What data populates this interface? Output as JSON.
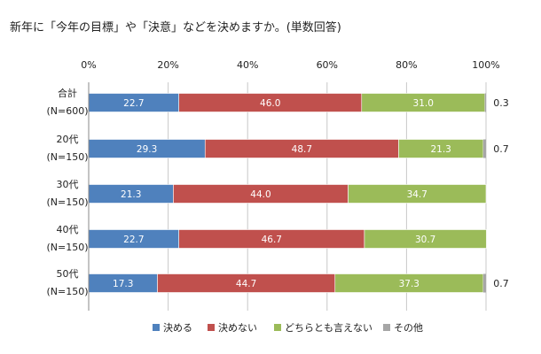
{
  "title": "新年に「今年の目標」や「決意」などを決めますか。(単数回答)",
  "colors": {
    "決める": "#4f81bd",
    "決めない": "#c0504d",
    "どちらとも言えない": "#9bbb59",
    "その他": "#a6a6a6"
  },
  "chart_data": {
    "type": "bar",
    "orientation": "horizontal",
    "stacked": true,
    "percent_stacked": true,
    "title": "新年に「今年の目標」や「決意」などを決めますか。(単数回答)",
    "xlim": [
      0,
      100
    ],
    "x_ticks": [
      "0%",
      "20%",
      "40%",
      "60%",
      "80%",
      "100%"
    ],
    "grid": true,
    "legend_position": "bottom",
    "categories": [
      {
        "line1": "合計",
        "line2": "(N=600)"
      },
      {
        "line1": "20代",
        "line2": "(N=150)"
      },
      {
        "line1": "30代",
        "line2": "(N=150)"
      },
      {
        "line1": "40代",
        "line2": "(N=150)"
      },
      {
        "line1": "50代",
        "line2": "(N=150)"
      }
    ],
    "series": [
      {
        "name": "決める",
        "values": [
          22.7,
          29.3,
          21.3,
          22.7,
          17.3
        ]
      },
      {
        "name": "決めない",
        "values": [
          46.0,
          48.7,
          44.0,
          46.7,
          44.7
        ]
      },
      {
        "name": "どちらとも言えない",
        "values": [
          31.0,
          21.3,
          34.7,
          30.7,
          37.3
        ]
      },
      {
        "name": "その他",
        "values": [
          0.3,
          0.7,
          null,
          null,
          0.7
        ]
      }
    ],
    "value_labels": [
      [
        "22.7",
        "46.0",
        "31.0",
        "0.3"
      ],
      [
        "29.3",
        "48.7",
        "21.3",
        "0.7"
      ],
      [
        "21.3",
        "44.0",
        "34.7",
        ""
      ],
      [
        "22.7",
        "46.7",
        "30.7",
        ""
      ],
      [
        "17.3",
        "44.7",
        "37.3",
        "0.7"
      ]
    ]
  }
}
